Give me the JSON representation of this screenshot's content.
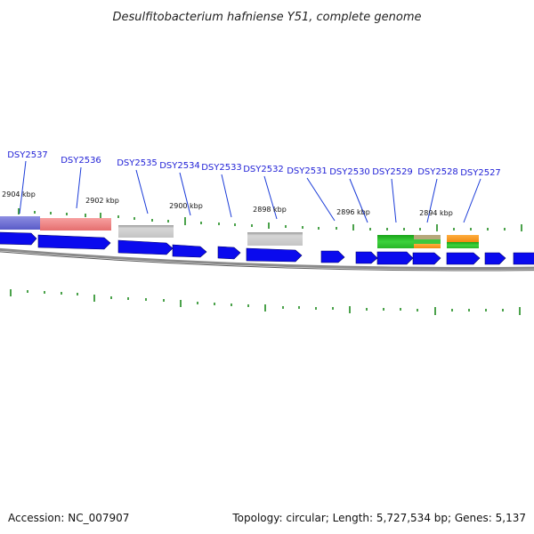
{
  "title": "Desulfitobacterium hafniense Y51, complete genome",
  "footer": {
    "accession": "Accession: NC_007907",
    "summary": "Topology: circular; Length: 5,727,534 bp; Genes: 5,137"
  },
  "colors": {
    "gene_arrow": "#0a0aee",
    "gene_label": "#1f1fd6",
    "leader_line": "#1a3bd8",
    "tick": "#1e8a1e",
    "backbone": "#808080"
  },
  "position_labels": [
    {
      "text": "2904 kbp"
    },
    {
      "text": "2902 kbp"
    },
    {
      "text": "2900 kbp"
    },
    {
      "text": "2898 kbp"
    },
    {
      "text": "2896 kbp"
    },
    {
      "text": "2894 kbp"
    }
  ],
  "genes": [
    {
      "label": "DSY2537"
    },
    {
      "label": "DSY2536"
    },
    {
      "label": "DSY2535"
    },
    {
      "label": "DSY2534"
    },
    {
      "label": "DSY2533"
    },
    {
      "label": "DSY2532"
    },
    {
      "label": "DSY2531"
    },
    {
      "label": "DSY2530"
    },
    {
      "label": "DSY2529"
    },
    {
      "label": "DSY2528"
    },
    {
      "label": "DSY2527"
    }
  ]
}
